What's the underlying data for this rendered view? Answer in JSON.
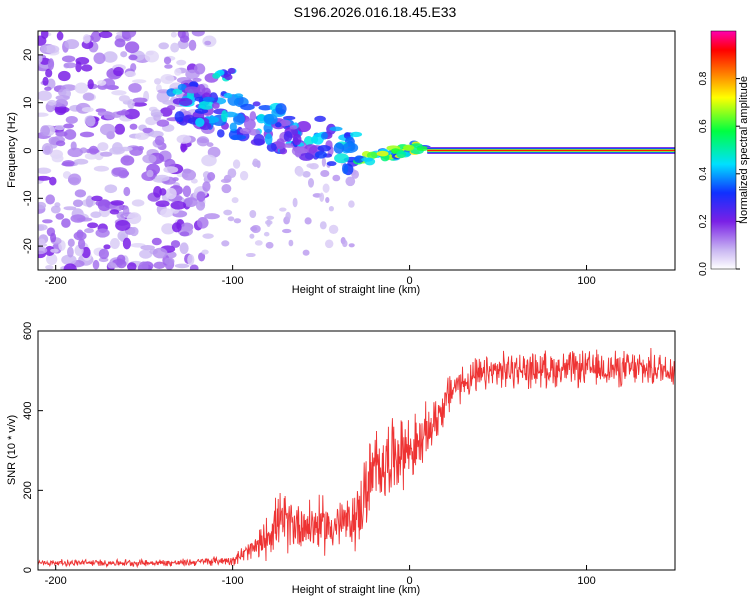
{
  "title": "S196.2026.016.18.45.E33",
  "chart_data": [
    {
      "type": "heatmap",
      "name": "spectrogram",
      "xlabel": "Height of straight line (km)",
      "ylabel": "Frequency (Hz)",
      "xlim": [
        -210,
        150
      ],
      "ylim": [
        -25,
        25
      ],
      "xticks": [
        -200,
        -100,
        0,
        100
      ],
      "yticks": [
        -20,
        -10,
        0,
        10,
        20
      ],
      "features": [
        {
          "desc": "scattered noise",
          "x": [
            -210,
            -110
          ],
          "amplitude": 0.12
        },
        {
          "desc": "descending echo track",
          "x": [
            -135,
            -30
          ],
          "freq": [
            11,
            0
          ],
          "amplitude": 0.35
        },
        {
          "desc": "strong echo cluster",
          "x": [
            -110,
            -100
          ],
          "freq": [
            16,
            16
          ],
          "amplitude": 0.3
        },
        {
          "desc": "transition segment",
          "x": [
            -30,
            10
          ],
          "freq": [
            -2,
            1
          ],
          "amplitude": 0.5
        },
        {
          "desc": "steady line",
          "x": [
            10,
            150
          ],
          "freq": [
            0,
            0
          ],
          "amplitude": 0.9
        }
      ],
      "colorbar": {
        "label": "Normalized spectral amplitude",
        "range": [
          0.0,
          1.0
        ],
        "ticks": [
          0.0,
          0.2,
          0.4,
          0.6,
          0.8
        ]
      }
    },
    {
      "type": "line",
      "name": "snr",
      "xlabel": "Height of straight line (km)",
      "ylabel": "SNR (10 * v/v)",
      "xlim": [
        -210,
        150
      ],
      "ylim": [
        0,
        600
      ],
      "xticks": [
        -200,
        -100,
        0,
        100
      ],
      "yticks": [
        0,
        200,
        400,
        600
      ],
      "color": "#ee3333",
      "envelope": {
        "x": [
          -210,
          -130,
          -100,
          -85,
          -75,
          -60,
          -45,
          -35,
          -30,
          -22,
          -15,
          -5,
          5,
          15,
          25,
          35,
          50,
          80,
          110,
          150
        ],
        "mean": [
          18,
          18,
          25,
          60,
          120,
          115,
          110,
          120,
          130,
          230,
          270,
          300,
          310,
          380,
          460,
          480,
          500,
          505,
          505,
          505
        ],
        "noise": [
          8,
          9,
          12,
          40,
          70,
          70,
          70,
          60,
          80,
          110,
          100,
          90,
          80,
          60,
          50,
          45,
          45,
          45,
          45,
          45
        ]
      }
    }
  ]
}
